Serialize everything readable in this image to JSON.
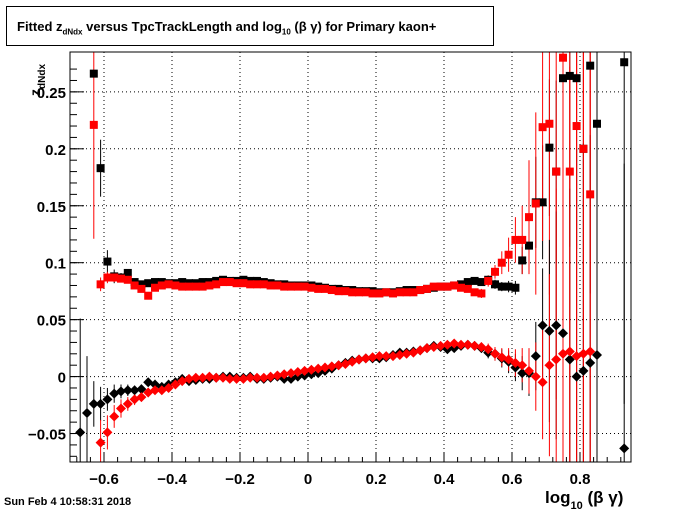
{
  "title": {
    "prefix": "Fitted  z",
    "sub1": "dNdx",
    "middle": "  versus TpcTrackLength and log",
    "sub2": "10",
    "suffix": " (β γ) for Primary kaon+"
  },
  "footer": {
    "timestamp": "Sun Feb  4 10:58:31 2018"
  },
  "chart_data": {
    "type": "scatter",
    "ylabel": "z_dNdx",
    "xlabel": "log10 (β γ)",
    "xlim": [
      -0.7,
      0.95
    ],
    "ylim": [
      -0.075,
      0.285
    ],
    "xticks": [
      -0.6,
      -0.4,
      -0.2,
      0,
      0.2,
      0.4,
      0.6,
      0.8
    ],
    "xtick_labels": [
      "−0.6",
      "−0.4",
      "−0.2",
      "0",
      "0.2",
      "0.4",
      "0.6",
      "0.8"
    ],
    "yticks": [
      -0.05,
      0,
      0.05,
      0.1,
      0.15,
      0.2,
      0.25
    ],
    "ytick_labels": [
      "−0.05",
      "0",
      "0.05",
      "0.1",
      "0.15",
      "0.2",
      "0.25"
    ],
    "grid": true,
    "series": [
      {
        "marker": "square",
        "color": "#000000",
        "x": [
          -0.63,
          -0.61,
          -0.59,
          -0.57,
          -0.55,
          -0.53,
          -0.51,
          -0.49,
          -0.47,
          -0.45,
          -0.43,
          -0.41,
          -0.39,
          -0.37,
          -0.35,
          -0.33,
          -0.31,
          -0.29,
          -0.27,
          -0.25,
          -0.23,
          -0.21,
          -0.19,
          -0.17,
          -0.15,
          -0.13,
          -0.11,
          -0.09,
          -0.07,
          -0.05,
          -0.03,
          -0.01,
          0.01,
          0.03,
          0.05,
          0.07,
          0.09,
          0.11,
          0.13,
          0.15,
          0.17,
          0.19,
          0.21,
          0.23,
          0.25,
          0.27,
          0.29,
          0.31,
          0.33,
          0.35,
          0.37,
          0.39,
          0.41,
          0.43,
          0.45,
          0.47,
          0.49,
          0.51,
          0.53,
          0.55,
          0.57,
          0.59,
          0.61,
          0.63,
          0.65,
          0.67,
          0.69,
          0.71,
          0.73,
          0.75,
          0.77,
          0.79,
          0.81,
          0.83,
          0.85,
          0.93
        ],
        "y": [
          0.266,
          0.183,
          0.101,
          0.088,
          0.087,
          0.091,
          0.083,
          0.081,
          0.082,
          0.083,
          0.083,
          0.082,
          0.082,
          0.083,
          0.082,
          0.082,
          0.083,
          0.083,
          0.084,
          0.085,
          0.084,
          0.084,
          0.085,
          0.084,
          0.084,
          0.083,
          0.082,
          0.081,
          0.081,
          0.08,
          0.08,
          0.08,
          0.08,
          0.079,
          0.078,
          0.077,
          0.077,
          0.076,
          0.076,
          0.075,
          0.075,
          0.075,
          0.074,
          0.074,
          0.074,
          0.075,
          0.076,
          0.076,
          0.076,
          0.077,
          0.078,
          0.079,
          0.079,
          0.08,
          0.081,
          0.083,
          0.084,
          0.083,
          0.085,
          0.081,
          0.079,
          0.079,
          0.078,
          0.102,
          0.115,
          0.153,
          0.153,
          0.201,
          0.18,
          0.262,
          0.264,
          0.262,
          0.2,
          0.273,
          0.222,
          0.276
        ],
        "err": [
          0.0,
          0.025,
          0.01,
          0.006,
          0.004,
          0.003,
          0.003,
          0.003,
          0.002,
          0.002,
          0.002,
          0.002,
          0.002,
          0.002,
          0.002,
          0.002,
          0.002,
          0.002,
          0.002,
          0.002,
          0.002,
          0.002,
          0.002,
          0.002,
          0.002,
          0.002,
          0.002,
          0.002,
          0.002,
          0.002,
          0.002,
          0.002,
          0.002,
          0.002,
          0.002,
          0.002,
          0.002,
          0.002,
          0.002,
          0.002,
          0.002,
          0.002,
          0.002,
          0.002,
          0.002,
          0.002,
          0.002,
          0.002,
          0.002,
          0.002,
          0.002,
          0.002,
          0.002,
          0.002,
          0.002,
          0.002,
          0.002,
          0.003,
          0.003,
          0.004,
          0.004,
          0.005,
          0.006,
          0.012,
          0.02,
          0.04,
          0.05,
          0.06,
          0.08,
          0.1,
          0.15,
          0.15,
          0.2,
          0.2,
          0.25,
          0.3
        ]
      },
      {
        "marker": "square",
        "color": "#ff0000",
        "x": [
          -0.63,
          -0.61,
          -0.59,
          -0.57,
          -0.55,
          -0.53,
          -0.51,
          -0.49,
          -0.47,
          -0.45,
          -0.43,
          -0.41,
          -0.39,
          -0.37,
          -0.35,
          -0.33,
          -0.31,
          -0.29,
          -0.27,
          -0.25,
          -0.23,
          -0.21,
          -0.19,
          -0.17,
          -0.15,
          -0.13,
          -0.11,
          -0.09,
          -0.07,
          -0.05,
          -0.03,
          -0.01,
          0.01,
          0.03,
          0.05,
          0.07,
          0.09,
          0.11,
          0.13,
          0.15,
          0.17,
          0.19,
          0.21,
          0.23,
          0.25,
          0.27,
          0.29,
          0.31,
          0.33,
          0.35,
          0.37,
          0.39,
          0.41,
          0.43,
          0.45,
          0.47,
          0.49,
          0.51,
          0.53,
          0.55,
          0.57,
          0.59,
          0.61,
          0.63,
          0.65,
          0.67,
          0.69,
          0.71,
          0.73,
          0.75,
          0.77,
          0.79,
          0.81,
          0.83
        ],
        "y": [
          0.221,
          0.081,
          0.087,
          0.087,
          0.086,
          0.085,
          0.08,
          0.077,
          0.071,
          0.078,
          0.08,
          0.081,
          0.08,
          0.079,
          0.079,
          0.079,
          0.079,
          0.08,
          0.081,
          0.083,
          0.083,
          0.082,
          0.082,
          0.081,
          0.081,
          0.081,
          0.08,
          0.08,
          0.079,
          0.079,
          0.079,
          0.079,
          0.078,
          0.077,
          0.077,
          0.076,
          0.075,
          0.075,
          0.074,
          0.074,
          0.074,
          0.073,
          0.073,
          0.074,
          0.073,
          0.074,
          0.074,
          0.074,
          0.076,
          0.077,
          0.079,
          0.079,
          0.079,
          0.08,
          0.078,
          0.077,
          0.074,
          0.073,
          0.084,
          0.092,
          0.1,
          0.107,
          0.12,
          0.12,
          0.14,
          0.152,
          0.219,
          0.222,
          0.18,
          0.28,
          0.18,
          0.22,
          0.2,
          0.16
        ],
        "err": [
          0.1,
          0.006,
          0.005,
          0.004,
          0.003,
          0.003,
          0.003,
          0.003,
          0.003,
          0.002,
          0.002,
          0.002,
          0.002,
          0.002,
          0.002,
          0.002,
          0.002,
          0.002,
          0.002,
          0.002,
          0.002,
          0.002,
          0.002,
          0.002,
          0.002,
          0.002,
          0.002,
          0.002,
          0.002,
          0.002,
          0.002,
          0.002,
          0.002,
          0.002,
          0.002,
          0.002,
          0.002,
          0.002,
          0.002,
          0.002,
          0.002,
          0.002,
          0.002,
          0.002,
          0.002,
          0.002,
          0.002,
          0.002,
          0.002,
          0.002,
          0.002,
          0.002,
          0.002,
          0.002,
          0.002,
          0.003,
          0.003,
          0.004,
          0.005,
          0.006,
          0.01,
          0.015,
          0.02,
          0.03,
          0.05,
          0.08,
          0.1,
          0.15,
          0.2,
          0.25,
          0.3,
          0.3,
          0.3,
          0.3
        ]
      },
      {
        "marker": "diamond",
        "color": "#000000",
        "x": [
          -0.67,
          -0.65,
          -0.63,
          -0.61,
          -0.59,
          -0.57,
          -0.55,
          -0.53,
          -0.51,
          -0.49,
          -0.47,
          -0.45,
          -0.43,
          -0.41,
          -0.39,
          -0.37,
          -0.35,
          -0.33,
          -0.31,
          -0.29,
          -0.27,
          -0.25,
          -0.23,
          -0.21,
          -0.19,
          -0.17,
          -0.15,
          -0.13,
          -0.11,
          -0.09,
          -0.07,
          -0.05,
          -0.03,
          -0.01,
          0.01,
          0.03,
          0.05,
          0.07,
          0.09,
          0.11,
          0.13,
          0.15,
          0.17,
          0.19,
          0.21,
          0.23,
          0.25,
          0.27,
          0.29,
          0.31,
          0.33,
          0.35,
          0.37,
          0.39,
          0.41,
          0.43,
          0.45,
          0.47,
          0.49,
          0.51,
          0.53,
          0.55,
          0.57,
          0.59,
          0.61,
          0.63,
          0.65,
          0.67,
          0.69,
          0.71,
          0.73,
          0.75,
          0.77,
          0.79,
          0.81,
          0.83,
          0.85,
          0.93
        ],
        "y": [
          -0.049,
          -0.032,
          -0.024,
          -0.024,
          -0.02,
          -0.015,
          -0.013,
          -0.012,
          -0.012,
          -0.011,
          -0.005,
          -0.007,
          -0.009,
          -0.007,
          -0.005,
          -0.002,
          -0.004,
          -0.003,
          -0.002,
          -0.002,
          -0.001,
          0.0,
          0.0,
          -0.001,
          -0.001,
          0.0,
          -0.002,
          -0.002,
          -0.001,
          0.0,
          -0.002,
          -0.002,
          0.0,
          0.001,
          0.002,
          0.003,
          0.005,
          0.007,
          0.01,
          0.012,
          0.014,
          0.015,
          0.016,
          0.016,
          0.016,
          0.017,
          0.019,
          0.021,
          0.021,
          0.022,
          0.023,
          0.025,
          0.027,
          0.026,
          0.024,
          0.025,
          0.027,
          0.028,
          0.027,
          0.025,
          0.021,
          0.02,
          0.016,
          0.013,
          0.008,
          0.003,
          0.003,
          0.018,
          0.045,
          0.04,
          0.045,
          0.038,
          0.015,
          0.0,
          0.005,
          0.012,
          0.019,
          -0.063
        ],
        "err": [
          0.1,
          0.05,
          0.02,
          0.015,
          0.01,
          0.008,
          0.006,
          0.005,
          0.004,
          0.004,
          0.003,
          0.003,
          0.003,
          0.003,
          0.003,
          0.003,
          0.003,
          0.003,
          0.003,
          0.003,
          0.003,
          0.003,
          0.003,
          0.003,
          0.003,
          0.003,
          0.003,
          0.003,
          0.003,
          0.003,
          0.003,
          0.003,
          0.003,
          0.003,
          0.003,
          0.003,
          0.003,
          0.003,
          0.003,
          0.003,
          0.003,
          0.003,
          0.003,
          0.003,
          0.003,
          0.003,
          0.003,
          0.003,
          0.003,
          0.003,
          0.003,
          0.003,
          0.003,
          0.003,
          0.003,
          0.003,
          0.003,
          0.003,
          0.003,
          0.004,
          0.005,
          0.006,
          0.008,
          0.01,
          0.012,
          0.015,
          0.02,
          0.03,
          0.05,
          0.08,
          0.1,
          0.15,
          0.15,
          0.2,
          0.2,
          0.2,
          0.25,
          0.25
        ]
      },
      {
        "marker": "diamond",
        "color": "#ff0000",
        "x": [
          -0.61,
          -0.59,
          -0.57,
          -0.55,
          -0.53,
          -0.51,
          -0.49,
          -0.47,
          -0.45,
          -0.43,
          -0.41,
          -0.39,
          -0.37,
          -0.35,
          -0.33,
          -0.31,
          -0.29,
          -0.27,
          -0.25,
          -0.23,
          -0.21,
          -0.19,
          -0.17,
          -0.15,
          -0.13,
          -0.11,
          -0.09,
          -0.07,
          -0.05,
          -0.03,
          -0.01,
          0.01,
          0.03,
          0.05,
          0.07,
          0.09,
          0.11,
          0.13,
          0.15,
          0.17,
          0.19,
          0.21,
          0.23,
          0.25,
          0.27,
          0.29,
          0.31,
          0.33,
          0.35,
          0.37,
          0.39,
          0.41,
          0.43,
          0.45,
          0.47,
          0.49,
          0.51,
          0.53,
          0.55,
          0.57,
          0.59,
          0.61,
          0.63,
          0.65,
          0.67,
          0.69,
          0.71,
          0.73,
          0.75,
          0.77,
          0.79,
          0.81,
          0.83
        ],
        "y": [
          -0.058,
          -0.049,
          -0.035,
          -0.028,
          -0.024,
          -0.02,
          -0.018,
          -0.014,
          -0.012,
          -0.012,
          -0.01,
          -0.007,
          -0.004,
          -0.002,
          -0.001,
          -0.001,
          0.0,
          -0.001,
          -0.001,
          -0.002,
          -0.002,
          -0.002,
          -0.001,
          -0.001,
          -0.001,
          0.0,
          0.001,
          0.002,
          0.003,
          0.004,
          0.005,
          0.006,
          0.007,
          0.008,
          0.009,
          0.01,
          0.011,
          0.013,
          0.015,
          0.016,
          0.017,
          0.018,
          0.018,
          0.018,
          0.019,
          0.02,
          0.021,
          0.023,
          0.025,
          0.026,
          0.027,
          0.028,
          0.029,
          0.028,
          0.028,
          0.027,
          0.026,
          0.024,
          0.02,
          0.017,
          0.015,
          0.012,
          0.01,
          0.005,
          0.0,
          -0.005,
          0.01,
          0.015,
          0.02,
          0.022,
          0.018,
          0.02,
          0.022
        ],
        "err": [
          0.02,
          0.015,
          0.01,
          0.008,
          0.006,
          0.005,
          0.004,
          0.004,
          0.003,
          0.003,
          0.003,
          0.003,
          0.003,
          0.003,
          0.003,
          0.003,
          0.003,
          0.003,
          0.003,
          0.003,
          0.003,
          0.003,
          0.003,
          0.003,
          0.003,
          0.003,
          0.003,
          0.003,
          0.003,
          0.003,
          0.003,
          0.003,
          0.003,
          0.003,
          0.003,
          0.003,
          0.003,
          0.003,
          0.003,
          0.003,
          0.003,
          0.003,
          0.003,
          0.003,
          0.003,
          0.003,
          0.003,
          0.003,
          0.003,
          0.003,
          0.003,
          0.003,
          0.003,
          0.003,
          0.003,
          0.003,
          0.004,
          0.005,
          0.006,
          0.008,
          0.01,
          0.012,
          0.015,
          0.02,
          0.03,
          0.05,
          0.08,
          0.15,
          0.2,
          0.25,
          0.3,
          0.3,
          0.3
        ]
      }
    ]
  }
}
